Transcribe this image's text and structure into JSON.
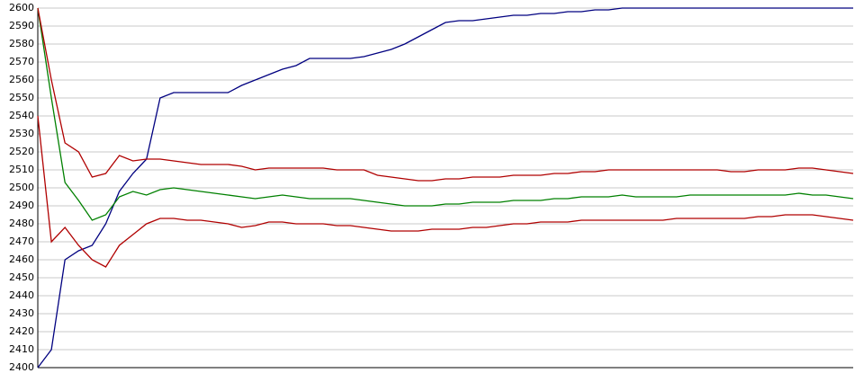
{
  "chart_data": {
    "type": "line",
    "ylim": [
      2400,
      2600
    ],
    "yticks": [
      2400,
      2410,
      2420,
      2430,
      2440,
      2450,
      2460,
      2470,
      2480,
      2490,
      2500,
      2510,
      2520,
      2530,
      2540,
      2550,
      2560,
      2570,
      2580,
      2590,
      2600
    ],
    "grid": true,
    "series": [
      {
        "color": "#000080",
        "values": [
          2400,
          2410,
          2460,
          2465,
          2468,
          2480,
          2498,
          2508,
          2516,
          2550,
          2553,
          2553,
          2553,
          2553,
          2553,
          2557,
          2560,
          2563,
          2566,
          2568,
          2572,
          2572,
          2572,
          2572,
          2573,
          2575,
          2577,
          2580,
          2584,
          2588,
          2592,
          2593,
          2593,
          2594,
          2595,
          2596,
          2596,
          2597,
          2597,
          2598,
          2598,
          2599,
          2599,
          2600,
          2600,
          2600,
          2600,
          2600,
          2600,
          2600,
          2600,
          2600,
          2600,
          2600,
          2600,
          2600,
          2600,
          2600,
          2600,
          2600,
          2600
        ]
      },
      {
        "color": "#008000",
        "values": [
          2600,
          2550,
          2503,
          2493,
          2482,
          2485,
          2495,
          2498,
          2496,
          2499,
          2500,
          2499,
          2498,
          2497,
          2496,
          2495,
          2494,
          2495,
          2496,
          2495,
          2494,
          2494,
          2494,
          2494,
          2493,
          2492,
          2491,
          2490,
          2490,
          2490,
          2491,
          2491,
          2492,
          2492,
          2492,
          2493,
          2493,
          2493,
          2494,
          2494,
          2495,
          2495,
          2495,
          2496,
          2495,
          2495,
          2495,
          2495,
          2496,
          2496,
          2496,
          2496,
          2496,
          2496,
          2496,
          2496,
          2497,
          2496,
          2496,
          2495,
          2494
        ]
      },
      {
        "color": "#b00000",
        "values": [
          2600,
          2560,
          2525,
          2520,
          2506,
          2508,
          2518,
          2515,
          2516,
          2516,
          2515,
          2514,
          2513,
          2513,
          2513,
          2512,
          2510,
          2511,
          2511,
          2511,
          2511,
          2511,
          2510,
          2510,
          2510,
          2507,
          2506,
          2505,
          2504,
          2504,
          2505,
          2505,
          2506,
          2506,
          2506,
          2507,
          2507,
          2507,
          2508,
          2508,
          2509,
          2509,
          2510,
          2510,
          2510,
          2510,
          2510,
          2510,
          2510,
          2510,
          2510,
          2509,
          2509,
          2510,
          2510,
          2510,
          2511,
          2511,
          2510,
          2509,
          2508
        ]
      },
      {
        "color": "#b00000",
        "values": [
          2540,
          2470,
          2478,
          2468,
          2460,
          2456,
          2468,
          2474,
          2480,
          2483,
          2483,
          2482,
          2482,
          2481,
          2480,
          2478,
          2479,
          2481,
          2481,
          2480,
          2480,
          2480,
          2479,
          2479,
          2478,
          2477,
          2476,
          2476,
          2476,
          2477,
          2477,
          2477,
          2478,
          2478,
          2479,
          2480,
          2480,
          2481,
          2481,
          2481,
          2482,
          2482,
          2482,
          2482,
          2482,
          2482,
          2482,
          2483,
          2483,
          2483,
          2483,
          2483,
          2483,
          2484,
          2484,
          2485,
          2485,
          2485,
          2484,
          2483,
          2482
        ]
      }
    ]
  }
}
